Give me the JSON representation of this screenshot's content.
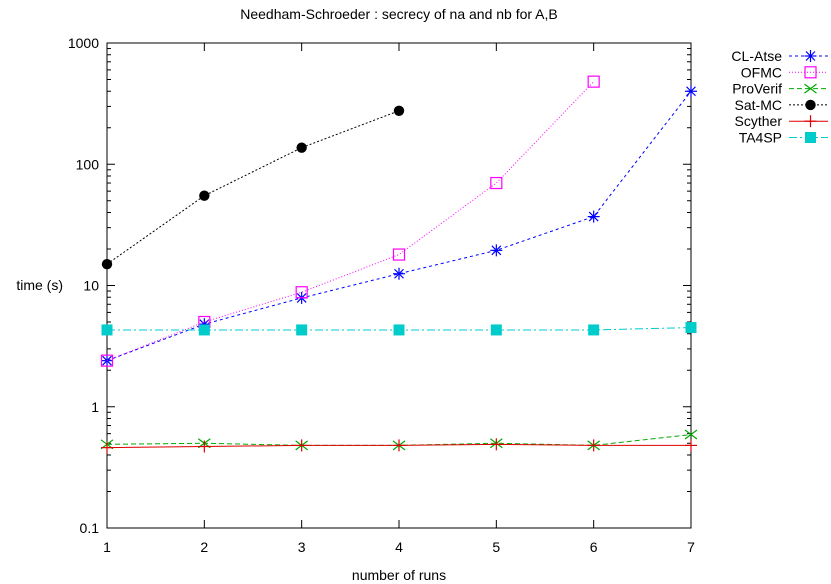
{
  "chart_data": {
    "type": "line",
    "title": "Needham-Schroeder : secrecy of na and nb for A,B",
    "xlabel": "number of runs",
    "ylabel": "time (s)",
    "xlim": [
      1,
      7
    ],
    "ylim": [
      0.1,
      1000
    ],
    "yscale": "log",
    "grid": false,
    "legend_position": "outside-top-right",
    "x_ticks": [
      "1",
      "2",
      "3",
      "4",
      "5",
      "6",
      "7"
    ],
    "y_ticks": [
      {
        "value": 0.1,
        "label": "0.1"
      },
      {
        "value": 1,
        "label": "1"
      },
      {
        "value": 10,
        "label": "10"
      },
      {
        "value": 100,
        "label": "100"
      },
      {
        "value": 1000,
        "label": "1000"
      }
    ],
    "series": [
      {
        "name": "CL-Atse",
        "color": "#0000ff",
        "marker": "asterisk",
        "dash": "3,3",
        "x": [
          1,
          2,
          3,
          4,
          5,
          6,
          7
        ],
        "y": [
          2.4,
          4.8,
          7.9,
          12.5,
          19.5,
          37,
          400
        ]
      },
      {
        "name": "OFMC",
        "color": "#ff00ff",
        "marker": "open-square",
        "dash": "1,2",
        "x": [
          1,
          2,
          3,
          4,
          5,
          6
        ],
        "y": [
          2.4,
          5.0,
          8.8,
          18,
          70,
          480
        ]
      },
      {
        "name": "ProVerif",
        "color": "#00aa00",
        "marker": "x",
        "dash": "5,3",
        "x": [
          1,
          2,
          3,
          4,
          5,
          6,
          7
        ],
        "y": [
          0.49,
          0.5,
          0.48,
          0.48,
          0.5,
          0.48,
          0.59
        ]
      },
      {
        "name": "Sat-MC",
        "color": "#000000",
        "marker": "filled-circle",
        "dash": "2,2",
        "x": [
          1,
          2,
          3,
          4
        ],
        "y": [
          15,
          55,
          137,
          276
        ]
      },
      {
        "name": "Scyther",
        "color": "#dd0000",
        "marker": "plus",
        "dash": "",
        "x": [
          1,
          2,
          3,
          4,
          5,
          6,
          7
        ],
        "y": [
          0.46,
          0.47,
          0.48,
          0.48,
          0.49,
          0.48,
          0.48
        ]
      },
      {
        "name": "TA4SP",
        "color": "#00cccc",
        "marker": "filled-square",
        "dash": "8,3,2,3",
        "x": [
          1,
          2,
          3,
          4,
          5,
          6,
          7
        ],
        "y": [
          4.3,
          4.3,
          4.3,
          4.3,
          4.3,
          4.3,
          4.5
        ]
      }
    ]
  }
}
